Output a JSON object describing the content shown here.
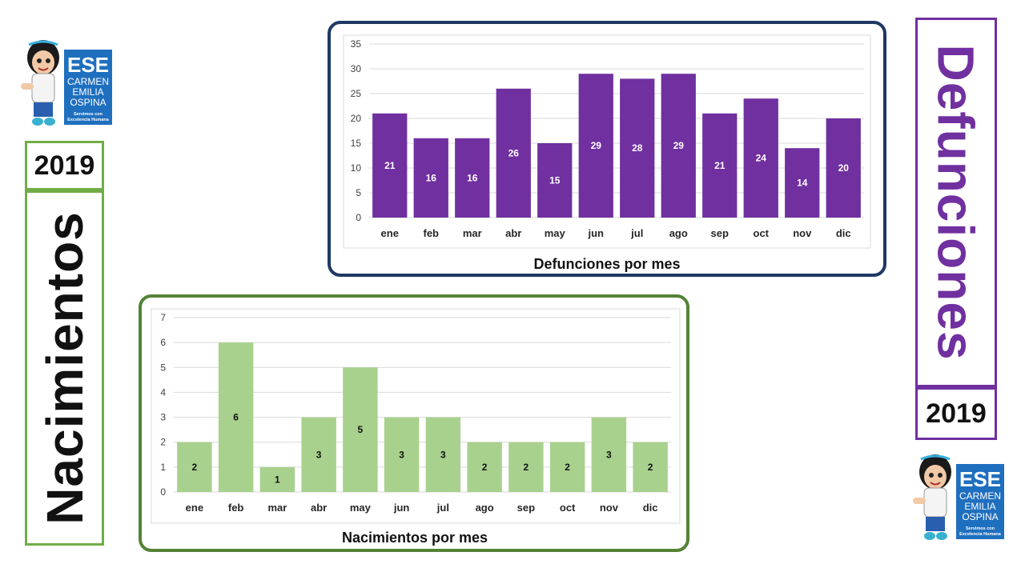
{
  "left_panel": {
    "year": "2019",
    "title": "Nacimientos"
  },
  "right_panel": {
    "year": "2019",
    "title": "Defunciones"
  },
  "logo": {
    "lines": [
      "ESE",
      "CARMEN",
      "EMILIA",
      "OSPINA"
    ],
    "tagline": [
      "Servimos con",
      "Excelencia Humana"
    ]
  },
  "colors": {
    "purple": "#7030a0",
    "green": "#a9d18e",
    "green_border": "#548235",
    "navy_border": "#1f3864",
    "left_border": "#70ad47",
    "logo_blue": "#1f6fbf"
  },
  "chart_data": [
    {
      "type": "bar",
      "title": "Defunciones por mes",
      "categories": [
        "ene",
        "feb",
        "mar",
        "abr",
        "may",
        "jun",
        "jul",
        "ago",
        "sep",
        "oct",
        "nov",
        "dic"
      ],
      "values": [
        21,
        16,
        16,
        26,
        15,
        29,
        28,
        29,
        21,
        24,
        14,
        20
      ],
      "ylim": [
        0,
        35
      ],
      "yticks": [
        "0",
        "5",
        "10",
        "15",
        "20",
        "25",
        "30",
        "35"
      ],
      "grid": true,
      "color": "#7030a0"
    },
    {
      "type": "bar",
      "title": "Nacimientos por mes",
      "categories": [
        "ene",
        "feb",
        "mar",
        "abr",
        "may",
        "jun",
        "jul",
        "ago",
        "sep",
        "oct",
        "nov",
        "dic"
      ],
      "values": [
        2,
        6,
        1,
        3,
        5,
        3,
        3,
        2,
        2,
        2,
        3,
        2
      ],
      "ylim": [
        0,
        7
      ],
      "yticks": [
        "0",
        "1",
        "2",
        "3",
        "4",
        "5",
        "6",
        "7"
      ],
      "grid": true,
      "color": "#a9d18e"
    }
  ]
}
